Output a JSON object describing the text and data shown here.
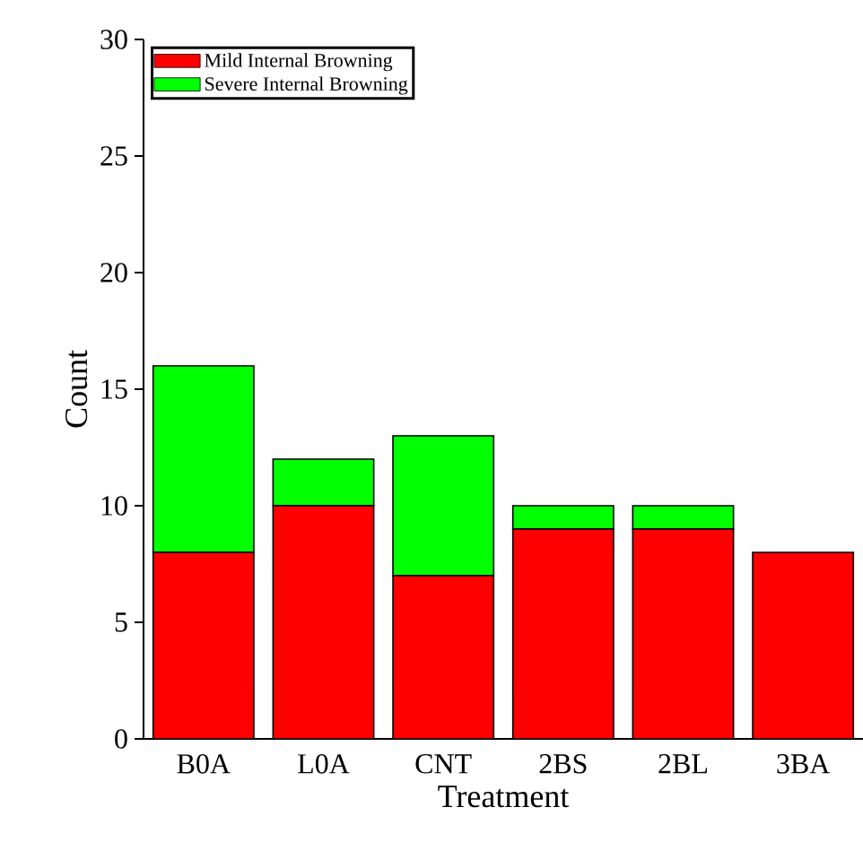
{
  "chart_data": {
    "type": "bar",
    "stacked": true,
    "xlabel": "Treatment",
    "ylabel": "Count",
    "categories": [
      "B0A",
      "L0A",
      "CNT",
      "2BS",
      "2BL",
      "3BA"
    ],
    "series": [
      {
        "name": "Mild Internal Browning",
        "color": "#ff0000",
        "values": [
          8,
          10,
          7,
          9,
          9,
          8
        ]
      },
      {
        "name": "Severe Internal Browning",
        "color": "#00ff00",
        "values": [
          8,
          2,
          6,
          1,
          1,
          0
        ]
      }
    ],
    "ylim": [
      0,
      30
    ],
    "yticks": [
      0,
      5,
      10,
      15,
      20,
      25,
      30
    ],
    "legend": "top left",
    "grid": false
  }
}
